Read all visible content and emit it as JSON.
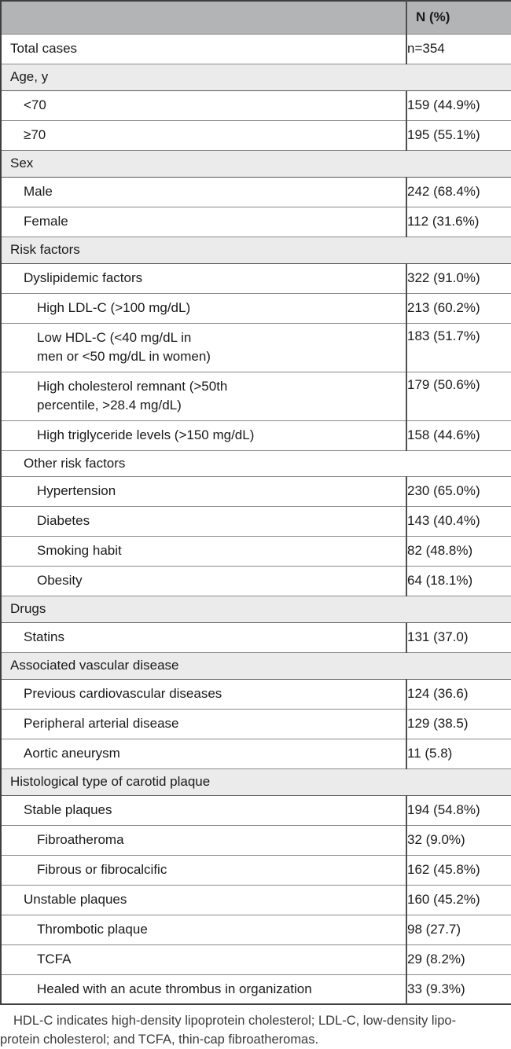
{
  "colors": {
    "header_bg": "#b2b4b5",
    "section_bg": "#ebebeb",
    "row_bg": "#ffffff",
    "outer_border": "#3f3f3f",
    "inner_border": "#8a8a8a",
    "column_divider": "#4f4f4f",
    "text": "#1a1a1a",
    "footnote_text": "#3a3a3a"
  },
  "table": {
    "header": {
      "label_col": "",
      "value_col": "N (%)"
    },
    "rows": [
      {
        "type": "data",
        "indent": 0,
        "label": "Total cases",
        "value": "n=354"
      },
      {
        "type": "section",
        "indent": 0,
        "label": "Age, y"
      },
      {
        "type": "data",
        "indent": 1,
        "label": "<70",
        "value": "159 (44.9%)"
      },
      {
        "type": "data",
        "indent": 1,
        "label": "≥70",
        "value": "195 (55.1%)"
      },
      {
        "type": "section",
        "indent": 0,
        "label": "Sex"
      },
      {
        "type": "data",
        "indent": 1,
        "label": "Male",
        "value": "242 (68.4%)"
      },
      {
        "type": "data",
        "indent": 1,
        "label": "Female",
        "value": "112 (31.6%)"
      },
      {
        "type": "section",
        "indent": 0,
        "label": "Risk factors"
      },
      {
        "type": "data",
        "indent": 1,
        "label": "Dyslipidemic factors",
        "value": "322 (91.0%)"
      },
      {
        "type": "data",
        "indent": 2,
        "label": "High LDL-C (>100 mg/dL)",
        "value": "213 (60.2%)"
      },
      {
        "type": "data",
        "indent": 2,
        "multiline": true,
        "label": "Low HDL-C (<40 mg/dL in\nmen or <50 mg/dL in women)",
        "value": "183 (51.7%)"
      },
      {
        "type": "data",
        "indent": 2,
        "multiline": true,
        "label": "High cholesterol remnant (>50th\npercentile, >28.4 mg/dL)",
        "value": "179 (50.6%)"
      },
      {
        "type": "data",
        "indent": 2,
        "label": "High triglyceride levels (>150 mg/dL)",
        "value": "158 (44.6%)"
      },
      {
        "type": "span",
        "indent": 1,
        "label": "Other risk factors"
      },
      {
        "type": "data",
        "indent": 2,
        "label": "Hypertension",
        "value": "230 (65.0%)"
      },
      {
        "type": "data",
        "indent": 2,
        "label": "Diabetes",
        "value": "143 (40.4%)"
      },
      {
        "type": "data",
        "indent": 2,
        "label": "Smoking habit",
        "value": "82 (48.8%)"
      },
      {
        "type": "data",
        "indent": 2,
        "label": "Obesity",
        "value": "64 (18.1%)"
      },
      {
        "type": "section",
        "indent": 0,
        "label": "Drugs"
      },
      {
        "type": "data",
        "indent": 1,
        "label": "Statins",
        "value": "131 (37.0)"
      },
      {
        "type": "section",
        "indent": 0,
        "label": "Associated vascular disease"
      },
      {
        "type": "data",
        "indent": 1,
        "label": "Previous cardiovascular diseases",
        "value": "124 (36.6)"
      },
      {
        "type": "data",
        "indent": 1,
        "label": "Peripheral arterial disease",
        "value": "129 (38.5)"
      },
      {
        "type": "data",
        "indent": 1,
        "label": "Aortic aneurysm",
        "value": "11 (5.8)"
      },
      {
        "type": "section",
        "indent": 0,
        "label": "Histological type of carotid plaque"
      },
      {
        "type": "data",
        "indent": 1,
        "label": "Stable plaques",
        "value": "194 (54.8%)"
      },
      {
        "type": "data",
        "indent": 2,
        "label": "Fibroatheroma",
        "value": "32 (9.0%)"
      },
      {
        "type": "data",
        "indent": 2,
        "label": "Fibrous or fibrocalcific",
        "value": "162 (45.8%)"
      },
      {
        "type": "data",
        "indent": 1,
        "label": "Unstable plaques",
        "value": "160 (45.2%)"
      },
      {
        "type": "data",
        "indent": 2,
        "label": "Thrombotic plaque",
        "value": "98 (27.7)"
      },
      {
        "type": "data",
        "indent": 2,
        "label": "TCFA",
        "value": "29 (8.2%)"
      },
      {
        "type": "data",
        "indent": 2,
        "label": "Healed with an acute thrombus in organization",
        "value": "33 (9.3%)"
      }
    ],
    "footnote": {
      "lines": [
        "HDL-C indicates high-density lipoprotein cholesterol; LDL-C, low-density lipo-",
        "protein cholesterol; and TCFA, thin-cap fibroatheromas."
      ]
    }
  }
}
